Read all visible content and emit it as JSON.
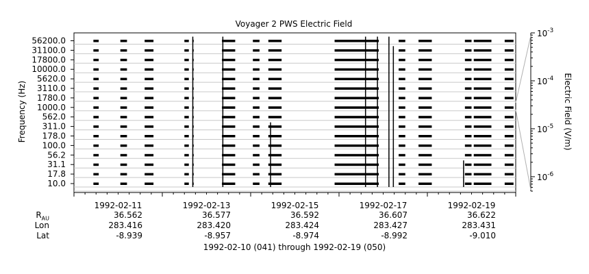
{
  "chart_data": {
    "type": "heatmap",
    "title": "Voyager 2 PWS Electric Field",
    "ylabel": "Frequency (Hz)",
    "colorbar_label": "Electric Field (V/m)",
    "colorbar_range": [
      5e-07,
      0.001
    ],
    "colorbar_scale": "log",
    "colorbar_ticks": [
      {
        "value": 0.001,
        "base": "10",
        "exp": "-3"
      },
      {
        "value": 0.0001,
        "base": "10",
        "exp": "-4"
      },
      {
        "value": 1e-05,
        "base": "10",
        "exp": "-5"
      },
      {
        "value": 1e-06,
        "base": "10",
        "exp": "-6"
      }
    ],
    "frequency_channels": [
      "10.0",
      "17.8",
      "31.1",
      "56.2",
      "100.0",
      "178.0",
      "311.0",
      "562.0",
      "1000.0",
      "1780.0",
      "3110.0",
      "5620.0",
      "10000.0",
      "17800.0",
      "31100.0",
      "56200.0"
    ],
    "x_range": [
      "1992-02-10",
      "1992-02-20"
    ],
    "x_ticks": [
      "1992-02-11",
      "1992-02-13",
      "1992-02-15",
      "1992-02-17",
      "1992-02-19"
    ],
    "data_intervals_days": [
      [
        0.44,
        0.56
      ],
      [
        1.05,
        1.2
      ],
      [
        1.6,
        1.8
      ],
      [
        2.5,
        2.6
      ],
      [
        2.68,
        2.71
      ],
      [
        3.35,
        3.65
      ],
      [
        4.05,
        4.2
      ],
      [
        4.4,
        4.7
      ],
      [
        5.9,
        6.9
      ],
      [
        7.35,
        7.5
      ],
      [
        7.8,
        8.1
      ],
      [
        8.85,
        9.0
      ],
      [
        9.05,
        9.45
      ],
      [
        9.75,
        9.95
      ]
    ],
    "bursts_days": [
      {
        "day": 2.69,
        "top_channel": 15
      },
      {
        "day": 3.37,
        "top_channel": 15
      },
      {
        "day": 6.6,
        "top_channel": 15
      },
      {
        "day": 6.87,
        "top_channel": 15
      },
      {
        "day": 7.13,
        "top_channel": 15
      },
      {
        "day": 7.23,
        "top_channel": 14
      },
      {
        "day": 4.45,
        "top_channel": 6
      },
      {
        "day": 8.82,
        "top_channel": 2
      }
    ]
  },
  "ephemeris": {
    "labels": {
      "r": "R",
      "r_sub": "AU",
      "lon": "Lon",
      "lat": "Lat"
    },
    "columns": [
      {
        "r": "36.562",
        "lon": "283.416",
        "lat": "-8.939"
      },
      {
        "r": "36.577",
        "lon": "283.420",
        "lat": "-8.957"
      },
      {
        "r": "36.592",
        "lon": "283.424",
        "lat": "-8.974"
      },
      {
        "r": "36.607",
        "lon": "283.427",
        "lat": "-8.992"
      },
      {
        "r": "36.622",
        "lon": "283.431",
        "lat": "-9.010"
      }
    ]
  },
  "time_range_label": "1992-02-10 (041) through 1992-02-19 (050)"
}
